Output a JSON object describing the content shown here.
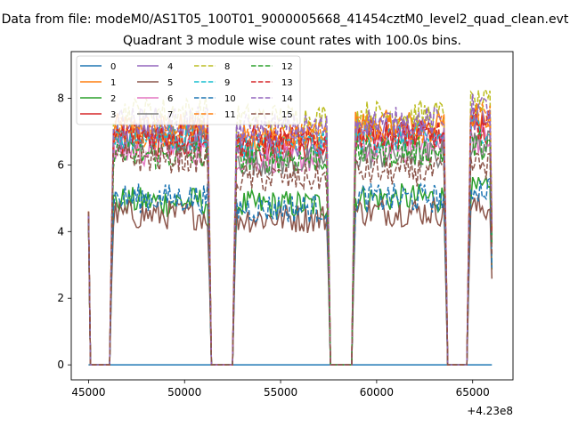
{
  "chart_data": {
    "type": "line",
    "suptitle": "Data from file: modeM0/AS1T05_100T01_9000005668_41454cztM0_level2_quad_clean.evt",
    "title": "Quadrant 3 module wise count rates with 100.0s bins.",
    "xlabel": "",
    "ylabel": "",
    "x_offset_label": "+4.23e8",
    "xlim": [
      44100,
      67100
    ],
    "ylim": [
      -0.45,
      9.4
    ],
    "xticks": [
      45000,
      50000,
      55000,
      60000,
      65000
    ],
    "xtick_labels": [
      "45000",
      "50000",
      "55000",
      "60000",
      "65000"
    ],
    "yticks": [
      0,
      2,
      4,
      6,
      8
    ],
    "ytick_labels": [
      "0",
      "2",
      "4",
      "6",
      "8"
    ],
    "grid": false,
    "legend_position": "top-left",
    "legend_ncol": 4,
    "segments": [
      [
        46200,
        51300
      ],
      [
        52600,
        57500
      ],
      [
        58800,
        63600
      ],
      [
        64800,
        66000
      ]
    ],
    "approx_note": "series values are approximate averages per good-time segment (counts/s)",
    "series": [
      {
        "name": "0",
        "color": "#1f77b4",
        "style": "solid",
        "levels": [
          0,
          0,
          0,
          0
        ]
      },
      {
        "name": "1",
        "color": "#ff7f0e",
        "style": "solid",
        "levels": [
          7.1,
          6.8,
          7.2,
          7.5
        ]
      },
      {
        "name": "2",
        "color": "#2ca02c",
        "style": "solid",
        "levels": [
          4.9,
          4.8,
          5.0,
          5.2
        ]
      },
      {
        "name": "3",
        "color": "#d62728",
        "style": "solid",
        "levels": [
          6.7,
          6.5,
          6.9,
          7.1
        ]
      },
      {
        "name": "4",
        "color": "#9467bd",
        "style": "solid",
        "levels": [
          6.9,
          6.6,
          7.0,
          7.4
        ]
      },
      {
        "name": "5",
        "color": "#8c564b",
        "style": "solid",
        "levels": [
          4.5,
          4.4,
          4.6,
          4.7
        ]
      },
      {
        "name": "6",
        "color": "#e377c2",
        "style": "solid",
        "levels": [
          6.4,
          6.2,
          6.5,
          6.8
        ]
      },
      {
        "name": "7",
        "color": "#7f7f7f",
        "style": "solid",
        "levels": [
          6.8,
          6.1,
          6.3,
          6.6
        ]
      },
      {
        "name": "8",
        "color": "#bcbd22",
        "style": "dashed",
        "levels": [
          7.6,
          7.4,
          7.5,
          7.8
        ]
      },
      {
        "name": "9",
        "color": "#17becf",
        "style": "dashed",
        "levels": [
          6.8,
          6.6,
          6.8,
          7.1
        ]
      },
      {
        "name": "10",
        "color": "#1f77b4",
        "style": "dashed",
        "levels": [
          5.0,
          4.7,
          5.0,
          5.3
        ]
      },
      {
        "name": "11",
        "color": "#ff7f0e",
        "style": "dashed",
        "levels": [
          7.0,
          6.9,
          7.1,
          7.4
        ]
      },
      {
        "name": "12",
        "color": "#2ca02c",
        "style": "dashed",
        "levels": [
          6.3,
          6.2,
          6.4,
          6.6
        ]
      },
      {
        "name": "13",
        "color": "#d62728",
        "style": "dashed",
        "levels": [
          6.9,
          6.7,
          6.9,
          7.2
        ]
      },
      {
        "name": "14",
        "color": "#9467bd",
        "style": "dashed",
        "levels": [
          7.3,
          7.1,
          7.3,
          7.7
        ]
      },
      {
        "name": "15",
        "color": "#8c564b",
        "style": "dashed",
        "levels": [
          6.2,
          5.6,
          5.8,
          6.0
        ]
      }
    ]
  }
}
